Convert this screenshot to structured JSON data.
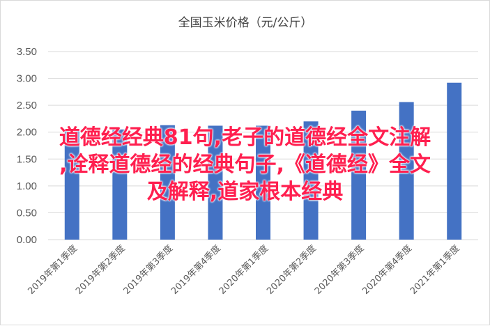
{
  "chart_data": {
    "type": "bar",
    "title": "全国玉米价格（元/公斤）",
    "xlabel": "",
    "ylabel": "",
    "ylim": [
      0,
      3.5
    ],
    "yticks": [
      "0.00",
      "0.50",
      "1.00",
      "1.50",
      "2.00",
      "2.50",
      "3.00",
      "3.50"
    ],
    "grid": true,
    "categories": [
      "2019年第1季度",
      "2019年第2季度",
      "2019年第3季度",
      "2019年第4季度",
      "2020年第1季度",
      "2020年第2季度",
      "2020年第3季度",
      "2020年第4季度",
      "2021年第1季度"
    ],
    "values": [
      2.06,
      2.05,
      2.13,
      2.12,
      2.12,
      2.2,
      2.4,
      2.56,
      2.92
    ],
    "bar_color": "#4472c4"
  },
  "overlay": {
    "lines": [
      "道德经经典81句,老子的道德经全文注解",
      ",诠释道德经的经典句子,《道德经》全文",
      "及解释,道家根本经典"
    ],
    "color": "#ff1f4f"
  }
}
